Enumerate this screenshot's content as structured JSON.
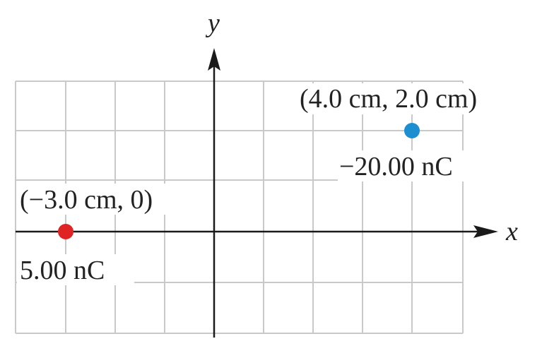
{
  "axes": {
    "x_label": "x",
    "y_label": "y"
  },
  "charges": [
    {
      "position": "(−3.0 cm, 0)",
      "charge": "5.00 nC",
      "color": "#e02424"
    },
    {
      "position": "(4.0 cm, 2.0 cm)",
      "charge": "−20.00 nC",
      "color": "#1d8fd1"
    }
  ]
}
